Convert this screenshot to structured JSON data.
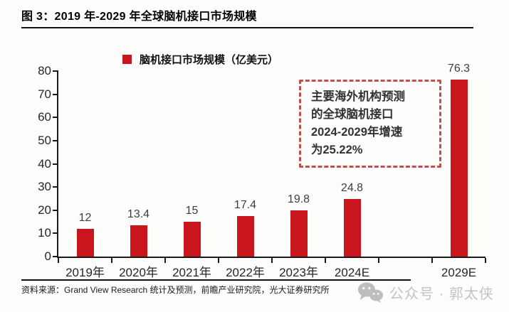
{
  "figure": {
    "title": "图 3：2019 年-2029 年全球脑机接口市场规模",
    "source": "资料来源：Grand View Research 统计及预测，前瞻产业研究院，光大证券研究所",
    "watermark": "公众号 · 郭太侠"
  },
  "chart_data": {
    "type": "bar",
    "title": "2019 年-2029 年全球脑机接口市场规模",
    "legend": "脑机接口市场规模（亿美元）",
    "legend_position": "top",
    "categories": [
      "2019年",
      "2020年",
      "2021年",
      "2022年",
      "2023年",
      "2024E",
      "",
      "2029E"
    ],
    "values": [
      12,
      13.4,
      15,
      17.4,
      19.8,
      24.8,
      null,
      76.3
    ],
    "xlabel": "",
    "ylabel": "",
    "ylim": [
      0,
      80
    ],
    "y_ticks": [
      0,
      10,
      20,
      30,
      40,
      50,
      60,
      70,
      80
    ],
    "grid": false,
    "annotation": {
      "lines": [
        "主要海外机构预测",
        "的全球脑机接口",
        "2024-2029年增速",
        "为25.22%"
      ]
    },
    "colors": {
      "bar": "#C9161D",
      "annotation_border": "#C0504D",
      "axis": "#1A1A1A",
      "value_label": "#3D3D3D"
    }
  }
}
